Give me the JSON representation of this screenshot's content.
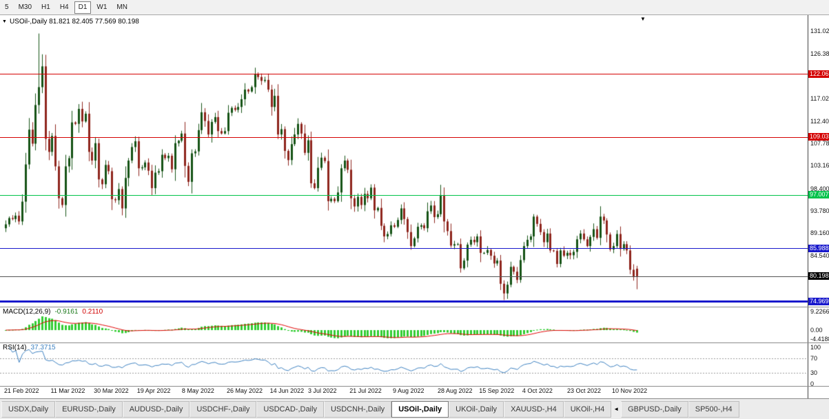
{
  "toolbar": {
    "periods": [
      {
        "label": "5",
        "active": false
      },
      {
        "label": "M30",
        "active": false
      },
      {
        "label": "H1",
        "active": false
      },
      {
        "label": "H4",
        "active": false
      },
      {
        "label": "D1",
        "active": true
      },
      {
        "label": "W1",
        "active": false
      },
      {
        "label": "MN",
        "active": false
      }
    ]
  },
  "chart": {
    "collapse_icon": "▼",
    "title": "USOil-,Daily 81.821 82.405 77.569 80.198",
    "shift_marker": "▼",
    "y_ticks": [
      {
        "label": "131.020",
        "price": 131.02
      },
      {
        "label": "126.380",
        "price": 126.38
      },
      {
        "label": "117.020",
        "price": 117.02
      },
      {
        "label": "112.400",
        "price": 112.4
      },
      {
        "label": "107.780",
        "price": 107.78
      },
      {
        "label": "103.160",
        "price": 103.16
      },
      {
        "label": "98.400",
        "price": 98.4
      },
      {
        "label": "93.780",
        "price": 93.78
      },
      {
        "label": "89.160",
        "price": 89.16
      },
      {
        "label": "84.540",
        "price": 84.54
      }
    ],
    "levels": [
      {
        "label": "122.06",
        "price": 122.06,
        "color": "#d40000",
        "width": 1
      },
      {
        "label": "109.03",
        "price": 109.03,
        "color": "#d40000",
        "width": 1
      },
      {
        "label": "97.007",
        "price": 97.007,
        "color": "#00c24a",
        "width": 1
      },
      {
        "label": "85.988",
        "price": 85.988,
        "color": "#1818cc",
        "width": 1
      },
      {
        "label": "74.969",
        "price": 74.969,
        "color": "#1818cc",
        "width": 3
      }
    ],
    "bid": {
      "label": "80.198",
      "price": 80.198,
      "line_color": "#555555",
      "badge_color": "#000000"
    },
    "x_labels": [
      {
        "label": "21 Feb 2022",
        "i": 0
      },
      {
        "label": "11 Mar 2022",
        "i": 14
      },
      {
        "label": "30 Mar 2022",
        "i": 27
      },
      {
        "label": "19 Apr 2022",
        "i": 40
      },
      {
        "label": "8 May 2022",
        "i": 53.5
      },
      {
        "label": "26 May 2022",
        "i": 67
      },
      {
        "label": "14 Jun 2022",
        "i": 80
      },
      {
        "label": "3 Jul 2022",
        "i": 91.5
      },
      {
        "label": "21 Jul 2022",
        "i": 104
      },
      {
        "label": "9 Aug 2022",
        "i": 117
      },
      {
        "label": "28 Aug 2022",
        "i": 130.5
      },
      {
        "label": "15 Sep 2022",
        "i": 143
      },
      {
        "label": "4 Oct 2022",
        "i": 156
      },
      {
        "label": "23 Oct 2022",
        "i": 169.5
      },
      {
        "label": "10 Nov 2022",
        "i": 183
      }
    ]
  },
  "macd_panel": {
    "name": "MACD(12,26,9)",
    "value": "-0.9161",
    "signal_value": "0.2110",
    "fast": 12,
    "slow": 26,
    "smoothing": 9,
    "y_ticks": [
      {
        "label": "9.2266",
        "value": 9.2266
      },
      {
        "label": "0.00",
        "value": 0
      },
      {
        "label": "-4.4188",
        "value": -4.4188
      }
    ]
  },
  "rsi_panel": {
    "name": "RSI(14)",
    "value": "37.3715",
    "period": 14,
    "levels": [
      70,
      30
    ],
    "y_ticks": [
      {
        "label": "100",
        "value": 100
      },
      {
        "label": "70",
        "value": 70
      },
      {
        "label": "30",
        "value": 30
      },
      {
        "label": "0",
        "value": 0
      }
    ]
  },
  "tabs": [
    {
      "label": "USDX,Daily",
      "active": false
    },
    {
      "label": "EURUSD-,Daily",
      "active": false
    },
    {
      "label": "AUDUSD-,Daily",
      "active": false
    },
    {
      "label": "USDCHF-,Daily",
      "active": false
    },
    {
      "label": "USDCAD-,Daily",
      "active": false
    },
    {
      "label": "USDCNH-,Daily",
      "active": false
    },
    {
      "label": "USOil-,Daily",
      "active": true
    },
    {
      "label": "UKOil-,Daily",
      "active": false
    },
    {
      "label": "XAUUSD-,H4",
      "active": false
    },
    {
      "label": "UKOil-,H4",
      "active": false
    },
    {
      "type": "arrow",
      "label": "◄"
    },
    {
      "label": "GBPUSD-,Daily",
      "active": false
    },
    {
      "label": "SP500-,H4",
      "active": false
    }
  ],
  "colors": {
    "up_candle": "#145214",
    "down_candle": "#8e241c",
    "macd_hist": "#32cd32",
    "macd_signal": "#e00000",
    "rsi_line": "#3c80c0",
    "rsi_level_line": "#9a9a9a",
    "axis_text": "#111111"
  },
  "chart_data": {
    "type": "candlestick",
    "symbol": "USOil-",
    "timeframe": "Daily",
    "last_ohlc": {
      "open": 81.821,
      "high": 82.405,
      "low": 77.569,
      "close": 80.198
    },
    "closes": [
      91.0,
      92.3,
      92.1,
      92.8,
      91.6,
      95.7,
      103.4,
      110.6,
      107.7,
      115.7,
      119.4,
      123.7,
      108.7,
      106.0,
      109.3,
      103.0,
      96.4,
      95.0,
      103.0,
      104.7,
      112.1,
      111.8,
      114.9,
      112.3,
      113.9,
      106.0,
      104.2,
      107.8,
      100.3,
      99.3,
      103.3,
      102.0,
      96.2,
      96.0,
      98.3,
      94.3,
      100.6,
      104.2,
      107.0,
      108.2,
      102.6,
      102.8,
      103.8,
      102.1,
      98.5,
      101.7,
      102.0,
      105.4,
      104.7,
      105.2,
      102.4,
      107.8,
      108.3,
      109.8,
      103.1,
      99.8,
      105.7,
      106.1,
      110.5,
      114.2,
      112.4,
      109.6,
      112.2,
      113.2,
      110.3,
      109.8,
      110.3,
      114.1,
      115.1,
      114.7,
      115.3,
      116.9,
      118.9,
      118.5,
      119.4,
      122.1,
      121.5,
      120.7,
      120.9,
      118.9,
      115.3,
      117.6,
      109.6,
      110.7,
      106.2,
      104.3,
      107.6,
      109.6,
      111.8,
      109.8,
      105.8,
      108.4,
      99.5,
      98.5,
      102.7,
      104.8,
      104.1,
      95.8,
      96.3,
      95.8,
      97.6,
      102.6,
      104.2,
      102.3,
      96.4,
      94.7,
      96.7,
      95.0,
      97.3,
      96.4,
      98.6,
      93.9,
      94.4,
      90.7,
      88.5,
      89.0,
      90.8,
      90.5,
      91.9,
      94.3,
      92.1,
      89.4,
      86.5,
      88.1,
      90.5,
      90.8,
      90.2,
      93.7,
      94.9,
      92.5,
      93.1,
      97.0,
      91.6,
      89.6,
      86.6,
      86.9,
      86.9,
      81.9,
      83.5,
      86.8,
      87.8,
      87.3,
      88.5,
      85.1,
      85.1,
      85.7,
      84.5,
      82.9,
      83.5,
      78.7,
      76.7,
      78.5,
      82.2,
      81.2,
      79.5,
      83.6,
      86.5,
      87.8,
      88.5,
      92.6,
      91.1,
      89.4,
      87.3,
      89.1,
      85.6,
      85.5,
      82.8,
      85.6,
      84.5,
      85.1,
      84.6,
      85.3,
      87.9,
      89.1,
      87.9,
      86.5,
      88.4,
      90.0,
      88.2,
      92.6,
      91.8,
      88.9,
      85.8,
      86.5,
      89.0,
      85.9,
      86.9,
      85.6,
      81.6,
      80.1,
      80.198
    ],
    "wick_overrides": [
      {
        "i": 10,
        "high": 130.5
      },
      {
        "i": 11,
        "high": 126.2
      }
    ]
  }
}
